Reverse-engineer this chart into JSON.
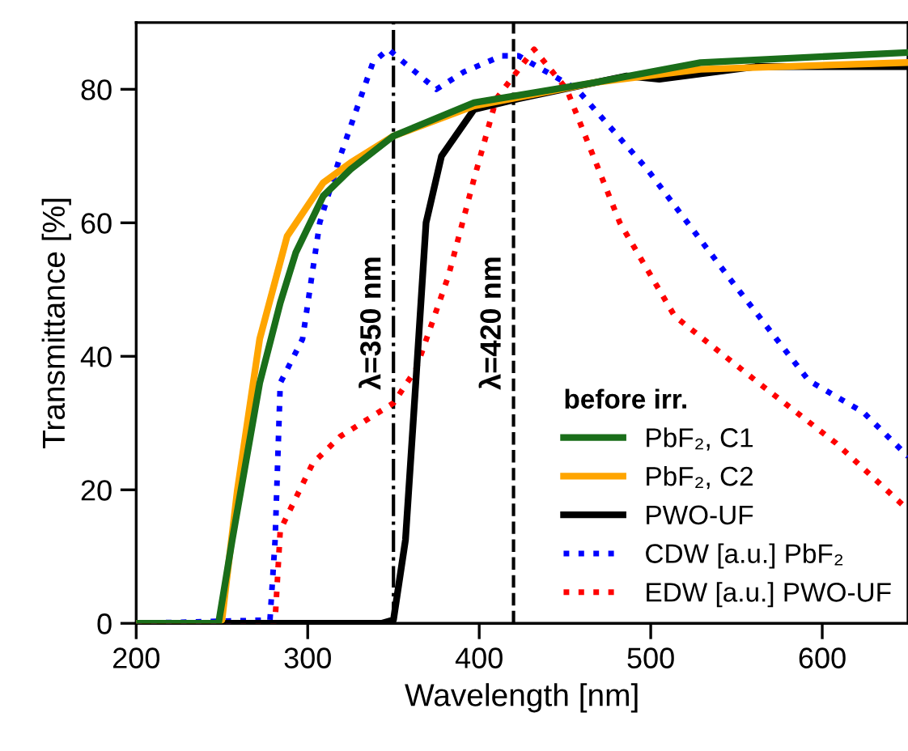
{
  "chart_data": {
    "type": "line",
    "xlabel": "Wavelength [nm]",
    "ylabel": "Transmittance [%]",
    "legend_title": "before irr.",
    "legend": "bottom right",
    "grid": false,
    "xlim": [
      200,
      650
    ],
    "ylim": [
      0,
      90
    ],
    "xticks": [
      200,
      300,
      400,
      500,
      600
    ],
    "yticks": [
      0,
      20,
      40,
      60,
      80
    ],
    "ref_lines": [
      {
        "axis": "x",
        "value": 350,
        "label": "λ=350 nm",
        "line_style": "dashdot",
        "color": "#000000"
      },
      {
        "axis": "x",
        "value": 420,
        "label": "λ=420 nm",
        "line_style": "dashed",
        "color": "#000000"
      }
    ],
    "series": [
      {
        "name": "PbF₂, C1",
        "color": "#1a6e1a",
        "line_style": "solid",
        "x": [
          200,
          248,
          256,
          272,
          284,
          293,
          309,
          325,
          350,
          397,
          467,
          529,
          649
        ],
        "values": [
          0,
          0,
          12.5,
          36,
          48,
          55.5,
          64,
          68,
          73,
          78,
          81,
          84,
          85.5
        ]
      },
      {
        "name": "PbF₂, C2",
        "color": "#ffa500",
        "line_style": "solid",
        "x": [
          200,
          247,
          250,
          259,
          272,
          288,
          309,
          325,
          350,
          397,
          467,
          529,
          649
        ],
        "values": [
          0,
          0,
          0.5,
          20,
          42.6,
          58,
          66,
          69,
          73,
          77.5,
          81,
          83,
          84
        ]
      },
      {
        "name": "PWO-UF",
        "color": "#000000",
        "line_style": "solid",
        "x": [
          200,
          343,
          350,
          357,
          363,
          369,
          378,
          397,
          423,
          486,
          505,
          561,
          649
        ],
        "values": [
          0,
          0,
          0.5,
          12.5,
          36,
          60,
          70,
          77,
          78.6,
          82,
          81.5,
          83.4,
          83.4
        ]
      },
      {
        "name": "CDW [a.u.] PbF₂",
        "color": "#0000ff",
        "line_style": "dotted",
        "x": [
          200,
          278,
          281,
          284,
          297,
          307,
          319,
          338,
          347,
          359,
          375,
          391,
          413,
          423,
          457,
          498,
          545,
          592,
          624,
          650
        ],
        "values": [
          0,
          0.5,
          12.5,
          36,
          42.6,
          60,
          70,
          84,
          86,
          83.4,
          80,
          82.6,
          85,
          85,
          80,
          68,
          52,
          36.4,
          31.6,
          25
        ]
      },
      {
        "name": "EDW [a.u.] PWO-UF",
        "color": "#ff0000",
        "line_style": "dotted",
        "x": [
          200,
          280,
          281,
          284,
          303,
          319,
          350,
          363,
          382,
          397,
          410,
          432,
          451,
          482,
          514,
          561,
          608,
          650
        ],
        "values": [
          0,
          0,
          0.5,
          14,
          24,
          28,
          33,
          38,
          52,
          66.6,
          78.6,
          86,
          80,
          60,
          46,
          36.4,
          27,
          17
        ]
      }
    ]
  }
}
